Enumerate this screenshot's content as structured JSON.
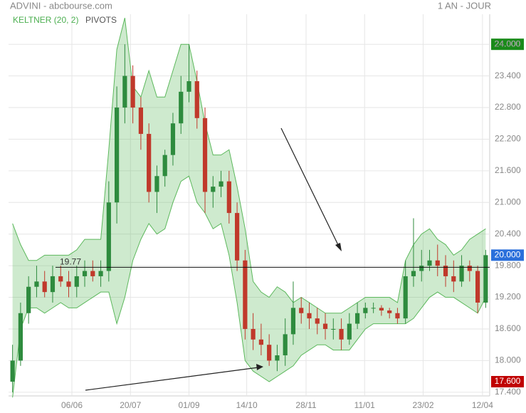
{
  "chart_data": {
    "type": "candlestick",
    "title": "ADVINI - abcbourse.com",
    "period": "1 AN - JOUR",
    "indicators": [
      "KELTNER (20, 2)",
      "PIVOTS"
    ],
    "x": [
      0,
      1,
      2,
      3,
      4,
      5,
      6,
      7,
      8,
      9,
      10,
      11,
      12,
      13,
      14,
      15,
      16,
      17,
      18,
      19,
      20,
      21,
      22,
      23,
      24,
      25,
      26,
      27,
      28,
      29,
      30,
      31,
      32,
      33,
      34,
      35,
      36,
      37,
      38,
      39,
      40,
      41,
      42,
      43,
      44,
      45,
      46,
      47,
      48,
      49,
      50,
      51,
      52,
      53,
      54,
      55,
      56,
      57,
      58,
      59
    ],
    "open": [
      17.6,
      18.0,
      18.9,
      19.4,
      19.5,
      19.3,
      19.6,
      19.5,
      19.4,
      19.6,
      19.7,
      19.6,
      19.7,
      21.0,
      22.8,
      23.4,
      22.8,
      22.3,
      21.2,
      21.5,
      21.9,
      22.5,
      23.1,
      23.3,
      22.6,
      21.2,
      21.3,
      21.4,
      20.8,
      19.9,
      18.6,
      18.4,
      18.3,
      18.0,
      18.1,
      18.5,
      19.0,
      18.9,
      18.8,
      18.7,
      18.6,
      18.6,
      18.4,
      18.7,
      18.9,
      19.0,
      19.0,
      18.95,
      18.9,
      18.8,
      19.6,
      19.7,
      19.8,
      19.9,
      19.8,
      19.6,
      19.5,
      19.8,
      19.7,
      19.1
    ],
    "high": [
      18.3,
      19.1,
      19.6,
      19.8,
      19.7,
      19.8,
      19.8,
      19.7,
      19.8,
      19.9,
      19.9,
      19.9,
      21.4,
      23.2,
      24.0,
      23.6,
      23.0,
      22.5,
      21.7,
      22.0,
      22.7,
      23.4,
      24.0,
      23.5,
      22.8,
      21.5,
      21.6,
      21.6,
      21.0,
      20.1,
      18.9,
      18.7,
      18.5,
      18.3,
      18.8,
      19.5,
      19.2,
      19.1,
      19.0,
      18.9,
      18.8,
      18.8,
      18.9,
      19.1,
      19.1,
      19.1,
      19.05,
      19.0,
      19.0,
      19.9,
      20.7,
      20.1,
      20.1,
      20.2,
      20.0,
      19.9,
      20.0,
      19.9,
      19.8,
      20.1
    ],
    "low": [
      17.4,
      17.9,
      18.7,
      19.2,
      19.2,
      19.1,
      19.4,
      19.2,
      19.2,
      19.4,
      19.5,
      19.4,
      19.5,
      20.6,
      22.5,
      22.5,
      22.0,
      21.0,
      20.8,
      21.3,
      21.7,
      22.3,
      22.9,
      22.4,
      20.8,
      20.9,
      21.1,
      20.6,
      19.7,
      18.4,
      18.2,
      18.1,
      17.9,
      17.8,
      17.9,
      18.3,
      18.7,
      18.6,
      18.5,
      18.4,
      18.4,
      18.2,
      18.3,
      18.6,
      18.8,
      18.9,
      18.85,
      18.8,
      18.7,
      18.7,
      19.4,
      19.5,
      19.7,
      19.6,
      19.4,
      19.3,
      19.4,
      19.5,
      18.9,
      19.0
    ],
    "close": [
      18.0,
      18.9,
      19.4,
      19.5,
      19.3,
      19.6,
      19.5,
      19.4,
      19.6,
      19.7,
      19.6,
      19.7,
      21.0,
      22.8,
      23.4,
      22.8,
      22.3,
      21.2,
      21.5,
      21.9,
      22.5,
      23.1,
      23.3,
      22.6,
      21.2,
      21.3,
      21.4,
      20.8,
      19.9,
      18.6,
      18.4,
      18.3,
      18.0,
      18.1,
      18.5,
      19.0,
      18.9,
      18.8,
      18.7,
      18.6,
      18.6,
      18.4,
      18.7,
      18.9,
      19.0,
      19.0,
      18.95,
      18.9,
      18.8,
      19.6,
      19.7,
      19.8,
      19.9,
      19.8,
      19.6,
      19.5,
      19.8,
      19.7,
      19.1,
      20.0
    ],
    "band_upper": [
      20.6,
      20.2,
      19.9,
      19.9,
      20.0,
      20.0,
      20.0,
      20.0,
      20.1,
      20.3,
      20.3,
      20.3,
      22.0,
      23.9,
      24.5,
      23.2,
      23.0,
      23.5,
      23.0,
      23.0,
      23.5,
      24.0,
      24.0,
      23.3,
      22.5,
      21.9,
      21.9,
      22.0,
      21.3,
      20.5,
      19.5,
      19.3,
      19.2,
      19.4,
      19.3,
      19.1,
      19.2,
      19.1,
      19.0,
      18.9,
      18.9,
      18.9,
      19.0,
      19.1,
      19.2,
      19.2,
      19.2,
      19.2,
      19.1,
      19.9,
      20.2,
      20.4,
      20.5,
      20.3,
      20.2,
      20.0,
      20.1,
      20.3,
      20.4,
      20.5
    ],
    "band_lower": [
      17.3,
      18.6,
      19.0,
      19.0,
      18.9,
      19.0,
      19.1,
      19.0,
      19.0,
      19.1,
      19.2,
      19.3,
      19.3,
      18.7,
      19.2,
      19.9,
      20.3,
      20.6,
      20.4,
      20.5,
      21.0,
      21.4,
      21.5,
      21.0,
      20.8,
      20.5,
      20.6,
      20.0,
      19.1,
      18.0,
      17.8,
      17.7,
      17.6,
      17.7,
      17.8,
      17.9,
      18.1,
      18.2,
      18.3,
      18.3,
      18.2,
      18.2,
      18.2,
      18.4,
      18.6,
      18.7,
      18.7,
      18.7,
      18.7,
      18.7,
      18.8,
      19.0,
      19.2,
      19.3,
      19.2,
      19.2,
      19.1,
      19.0,
      18.9,
      19.2
    ],
    "up_color": "#2e8b3e",
    "down_color": "#c0392b",
    "band_color": "#5cb85c",
    "xlim": [
      -0.5,
      59.5
    ],
    "xticks": [
      {
        "value": 7.4,
        "label": "06/06"
      },
      {
        "value": 14.7,
        "label": "20/07"
      },
      {
        "value": 22.0,
        "label": "01/09"
      },
      {
        "value": 29.2,
        "label": "14/10"
      },
      {
        "value": 36.6,
        "label": "28/11"
      },
      {
        "value": 43.9,
        "label": "11/01"
      },
      {
        "value": 51.2,
        "label": "23/02"
      },
      {
        "value": 58.6,
        "label": "12/04"
      }
    ],
    "ylim": [
      17.33,
      24.57
    ],
    "yticks": [
      {
        "value": 17.4,
        "label": "17.400"
      },
      {
        "value": 18.0,
        "label": "18.000"
      },
      {
        "value": 18.6,
        "label": "18.600"
      },
      {
        "value": 19.2,
        "label": "19.200"
      },
      {
        "value": 19.8,
        "label": "19.800"
      },
      {
        "value": 20.4,
        "label": "20.400"
      },
      {
        "value": 21.0,
        "label": "21.000"
      },
      {
        "value": 21.6,
        "label": "21.600"
      },
      {
        "value": 22.2,
        "label": "22.200"
      },
      {
        "value": 22.8,
        "label": "22.800"
      },
      {
        "value": 23.4,
        "label": "23.400"
      },
      {
        "value": 24.0,
        "label": "24.000"
      }
    ],
    "pivot": {
      "value": 19.77,
      "label": "19.77"
    },
    "price_labels": [
      {
        "value": 24.0,
        "label": "24.000",
        "color": "#1a8a1a"
      },
      {
        "value": 20.0,
        "label": "20.000",
        "color": "#2a6fdb"
      },
      {
        "value": 17.6,
        "label": "17.600",
        "color": "#c00000"
      }
    ],
    "grid": true
  }
}
